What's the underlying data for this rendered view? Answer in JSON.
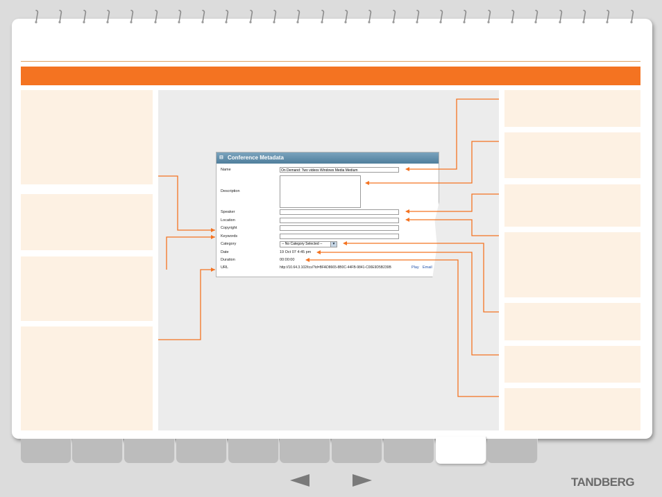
{
  "metadata_panel": {
    "header": "Conference Metadata",
    "collapse_icon": "⊟",
    "fields": [
      {
        "label": "Name",
        "value": "On Demand: Two videos Windows Media Medium"
      },
      {
        "label": "Description",
        "value": ""
      },
      {
        "label": "Speaker",
        "value": ""
      },
      {
        "label": "Location",
        "value": ""
      },
      {
        "label": "Copyright",
        "value": ""
      },
      {
        "label": "Keywords",
        "value": ""
      }
    ],
    "category": {
      "label": "Category",
      "selected": "-- No Category Selected --"
    },
    "date": {
      "label": "Date",
      "value": "19 Oct 07 4:45 pm"
    },
    "duration": {
      "label": "Duration",
      "value": "00:00:00"
    },
    "url": {
      "label": "URL",
      "value": "http://10.64.3.102/tcs/?id=BFAD8665-8B0C-44FB-9841-C00E9D5B239B"
    },
    "links": {
      "play": "Play",
      "email": "Email"
    }
  },
  "branding": {
    "logo": "TANDBERG"
  },
  "nav": {
    "prev_icon": "left-arrow",
    "next_icon": "right-arrow"
  },
  "colors": {
    "accent": "#f47321",
    "panel": "#fdf1e3",
    "header": "#5a88a6"
  }
}
